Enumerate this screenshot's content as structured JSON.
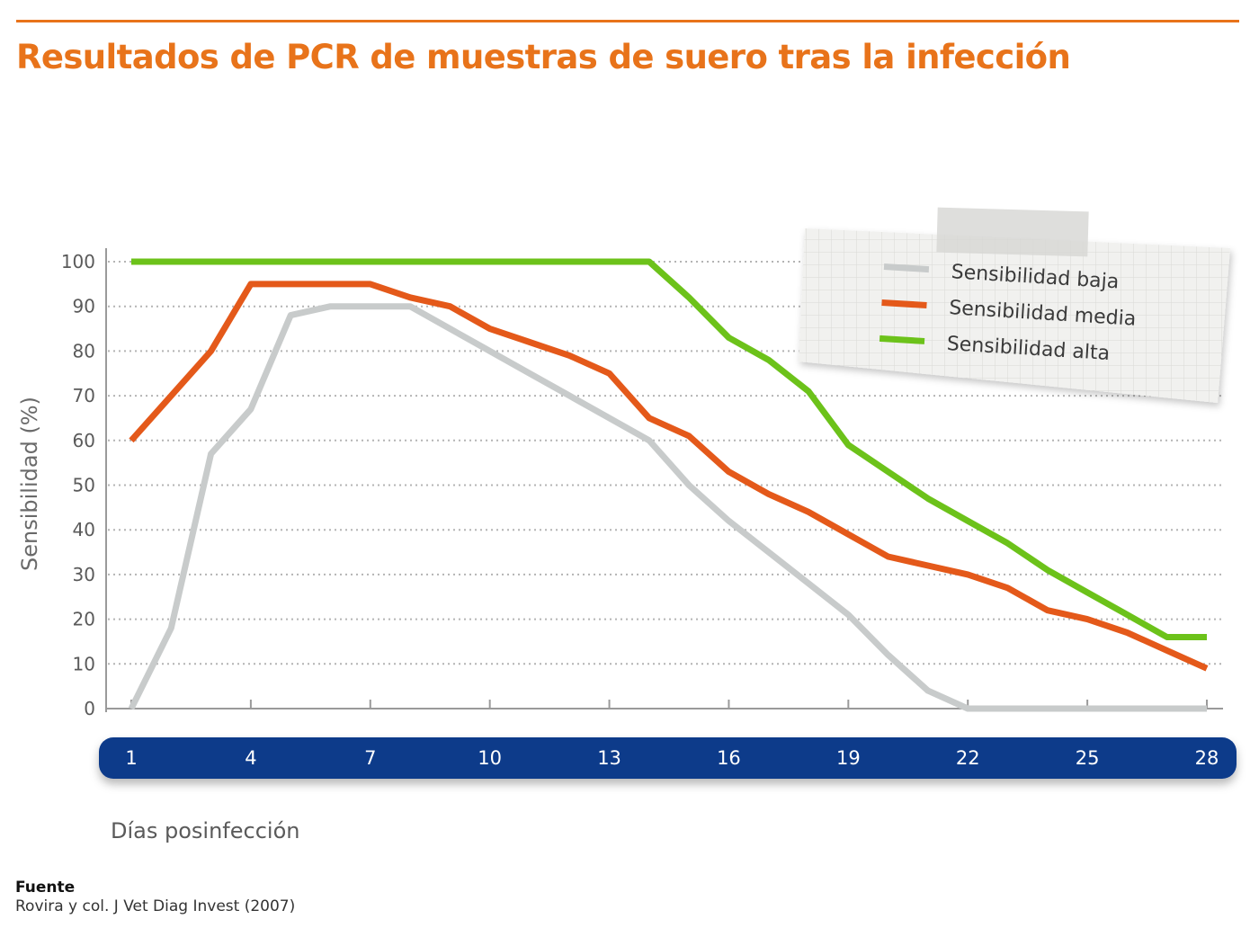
{
  "header": {
    "title": "Resultados de PCR de muestras de suero tras la infección"
  },
  "source": {
    "heading": "Fuente",
    "text": "Rovira y col. J Vet Diag Invest (2007)"
  },
  "colors": {
    "accent": "#e8731a",
    "axis_band": "#0f3b8a",
    "baja": "#c8cbcb",
    "media": "#e4591a",
    "alta": "#6cc21a"
  },
  "chart_data": {
    "type": "line",
    "xlabel": "Días posinfección",
    "ylabel": "Sensibilidad (%)",
    "xlim": [
      1,
      28
    ],
    "ylim": [
      0,
      100
    ],
    "x_ticks": [
      1,
      4,
      7,
      10,
      13,
      16,
      19,
      22,
      25,
      28
    ],
    "y_ticks": [
      0,
      10,
      20,
      30,
      40,
      50,
      60,
      70,
      80,
      90,
      100
    ],
    "grid": true,
    "legend_position": "top-right",
    "series": [
      {
        "name": "Sensibilidad baja",
        "color": "#c8cbcb",
        "x": [
          1,
          2,
          3,
          4,
          5,
          6,
          7,
          8,
          9,
          10,
          11,
          12,
          13,
          14,
          15,
          16,
          17,
          18,
          19,
          20,
          21,
          22,
          23,
          24,
          25,
          26,
          27,
          28
        ],
        "y": [
          0,
          18,
          57,
          67,
          88,
          90,
          90,
          90,
          85,
          80,
          75,
          70,
          65,
          60,
          50,
          42,
          35,
          28,
          21,
          12,
          4,
          0,
          0,
          0,
          0,
          0,
          0,
          0
        ]
      },
      {
        "name": "Sensibilidad media",
        "color": "#e4591a",
        "x": [
          1,
          3,
          4,
          5,
          6,
          7,
          8,
          9,
          10,
          11,
          12,
          13,
          14,
          15,
          16,
          17,
          18,
          19,
          20,
          21,
          22,
          23,
          24,
          25,
          26,
          27,
          28
        ],
        "y": [
          60,
          80,
          95,
          95,
          95,
          95,
          92,
          90,
          85,
          82,
          79,
          75,
          65,
          61,
          53,
          48,
          44,
          39,
          34,
          32,
          30,
          27,
          22,
          20,
          17,
          13,
          9
        ]
      },
      {
        "name": "Sensibilidad alta",
        "color": "#6cc21a",
        "x": [
          1,
          14,
          15,
          16,
          17,
          18,
          19,
          20,
          21,
          22,
          23,
          24,
          25,
          26,
          27,
          28
        ],
        "y": [
          100,
          100,
          92,
          83,
          78,
          71,
          59,
          53,
          47,
          42,
          37,
          31,
          26,
          21,
          16,
          16
        ]
      }
    ]
  }
}
